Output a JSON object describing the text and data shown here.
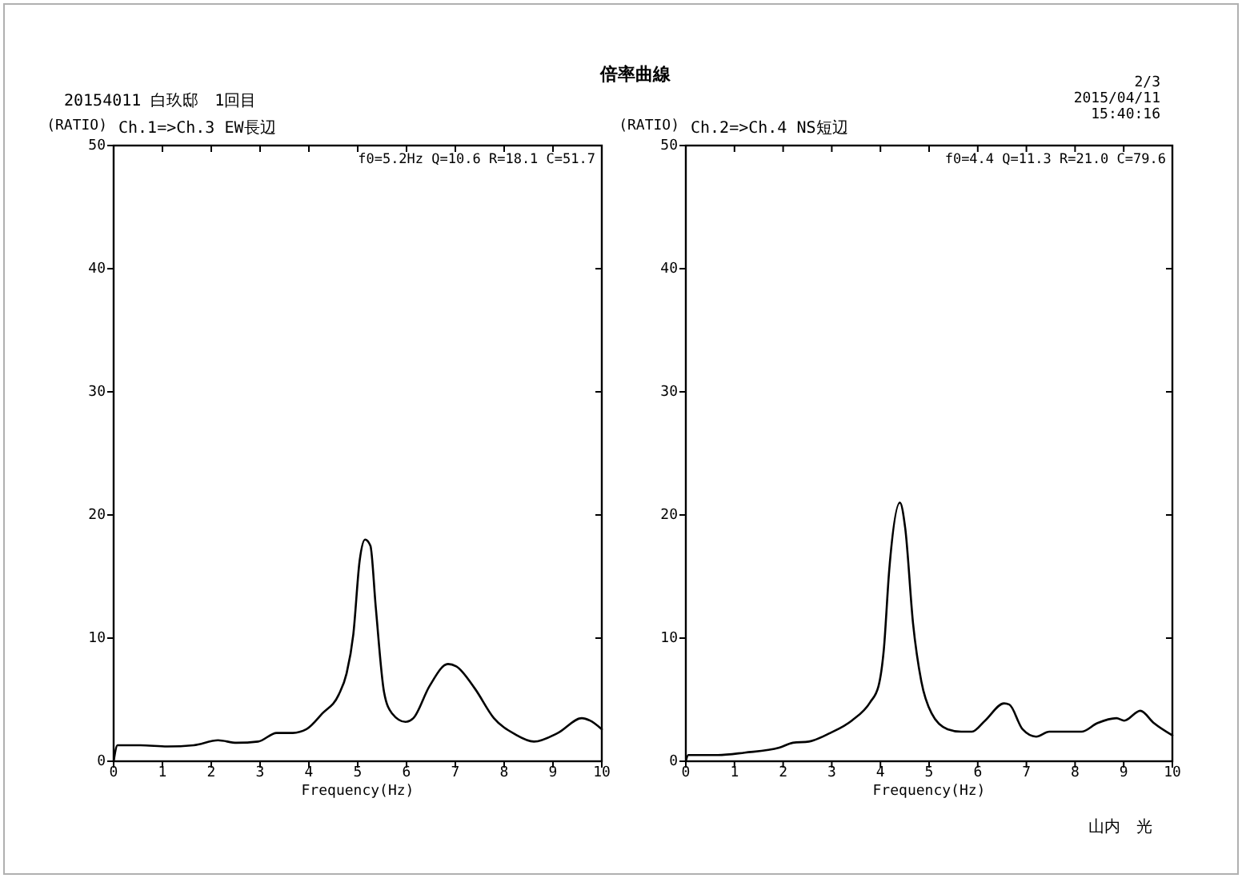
{
  "chart_data": [
    {
      "type": "line",
      "title": "Ch.1=>Ch.3 EW長辺",
      "xlabel": "Frequency(Hz)",
      "ylabel": "(RATIO)",
      "annotations": [
        "f0=5.2Hz Q=10.6 R=18.1 C=51.7",
        "倍率曲線",
        "20154011 白玖邸　1回目"
      ],
      "x": [
        0,
        0.08,
        0.55,
        1.1,
        1.64,
        2.14,
        2.52,
        2.96,
        3.34,
        3.67,
        3.95,
        4.28,
        4.61,
        4.77,
        4.91,
        5.04,
        5.15,
        5.26,
        5.37,
        5.54,
        5.7,
        5.98,
        6.14,
        6.47,
        6.85,
        7.02,
        7.4,
        7.79,
        8.22,
        8.61,
        9.1,
        9.59,
        9.76,
        10
      ],
      "values": [
        0,
        1.3,
        1.3,
        1.2,
        1.3,
        1.7,
        1.5,
        1.6,
        2.3,
        2.3,
        2.6,
        3.9,
        5.4,
        7.1,
        10.3,
        16.3,
        18,
        17.5,
        12.5,
        5.6,
        3.9,
        3.2,
        3.5,
        6.1,
        7.9,
        7.7,
        5.9,
        3.5,
        2.2,
        1.6,
        2.3,
        3.5,
        3.3,
        2.6
      ],
      "color": "#000000",
      "xlim": [
        0,
        10
      ],
      "ylim": [
        0,
        50
      ],
      "xticks": [
        0,
        1,
        2,
        3,
        4,
        5,
        6,
        7,
        8,
        9,
        10
      ],
      "yticks": [
        0,
        10,
        20,
        30,
        40,
        50
      ]
    },
    {
      "type": "line",
      "title": "Ch.2=>Ch.4 NS短辺",
      "xlabel": "Frequency(Hz)",
      "ylabel": "(RATIO)",
      "annotations": [
        "f0=4.4 Q=11.3 R=21.0 C=79.6",
        "2/3",
        "2015/04/11",
        "15:40:16",
        "山内　光"
      ],
      "x": [
        0,
        0.05,
        0.66,
        1.21,
        1.92,
        2.2,
        2.53,
        2.97,
        3.41,
        3.79,
        3.96,
        4.07,
        4.18,
        4.4,
        4.51,
        4.67,
        4.84,
        5.05,
        5.38,
        5.66,
        5.88,
        6.15,
        6.54,
        6.65,
        6.92,
        7.2,
        7.47,
        7.69,
        8.13,
        8.46,
        8.85,
        9.01,
        9.34,
        9.62,
        10
      ],
      "values": [
        0,
        0.5,
        0.5,
        0.7,
        1.1,
        1.5,
        1.6,
        2.3,
        3.3,
        4.8,
        6.1,
        9.1,
        15.5,
        21,
        18.9,
        11.2,
        6.5,
        3.9,
        2.6,
        2.4,
        2.4,
        3.3,
        4.7,
        4.6,
        2.6,
        2,
        2.4,
        2.4,
        2.4,
        3.1,
        3.5,
        3.3,
        4.1,
        3.1,
        2.1
      ],
      "color": "#000000",
      "xlim": [
        0,
        10
      ],
      "ylim": [
        0,
        50
      ],
      "xticks": [
        0,
        1,
        2,
        3,
        4,
        5,
        6,
        7,
        8,
        9,
        10
      ],
      "yticks": [
        0,
        10,
        20,
        30,
        40,
        50
      ]
    }
  ]
}
